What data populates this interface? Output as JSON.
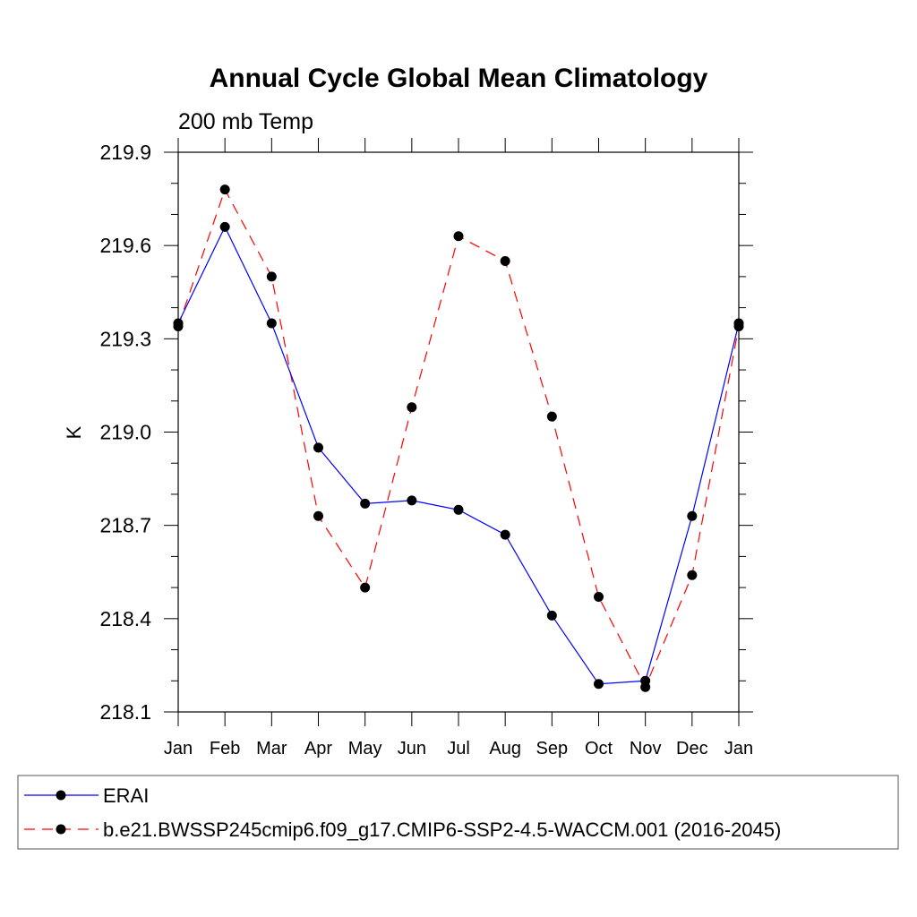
{
  "chart_data": {
    "type": "line",
    "title": "Annual Cycle Global Mean Climatology",
    "subtitle": "200 mb Temp",
    "xlabel": "",
    "ylabel": "K",
    "categories": [
      "Jan",
      "Feb",
      "Mar",
      "Apr",
      "May",
      "Jun",
      "Jul",
      "Aug",
      "Sep",
      "Oct",
      "Nov",
      "Dec",
      "Jan"
    ],
    "ylim": [
      218.1,
      219.9
    ],
    "yticks": [
      "218.1",
      "218.4",
      "218.7",
      "219.0",
      "219.3",
      "219.6",
      "219.9"
    ],
    "grid": false,
    "legend_position": "bottom",
    "series": [
      {
        "name": "ERAI",
        "color": "#0000ff",
        "line_style": "solid",
        "marker": "filled-circle",
        "values": [
          219.35,
          219.66,
          219.35,
          218.95,
          218.77,
          218.78,
          218.75,
          218.67,
          218.41,
          218.19,
          218.2,
          218.73,
          219.35
        ]
      },
      {
        "name": "b.e21.BWSSP245cmip6.f09_g17.CMIP6-SSP2-4.5-WACCM.001 (2016-2045)",
        "color": "#ff0000",
        "line_style": "dashed",
        "marker": "filled-circle",
        "values": [
          219.34,
          219.78,
          219.5,
          218.73,
          218.5,
          219.08,
          219.63,
          219.55,
          219.05,
          218.47,
          218.18,
          218.54,
          219.34
        ]
      }
    ]
  }
}
